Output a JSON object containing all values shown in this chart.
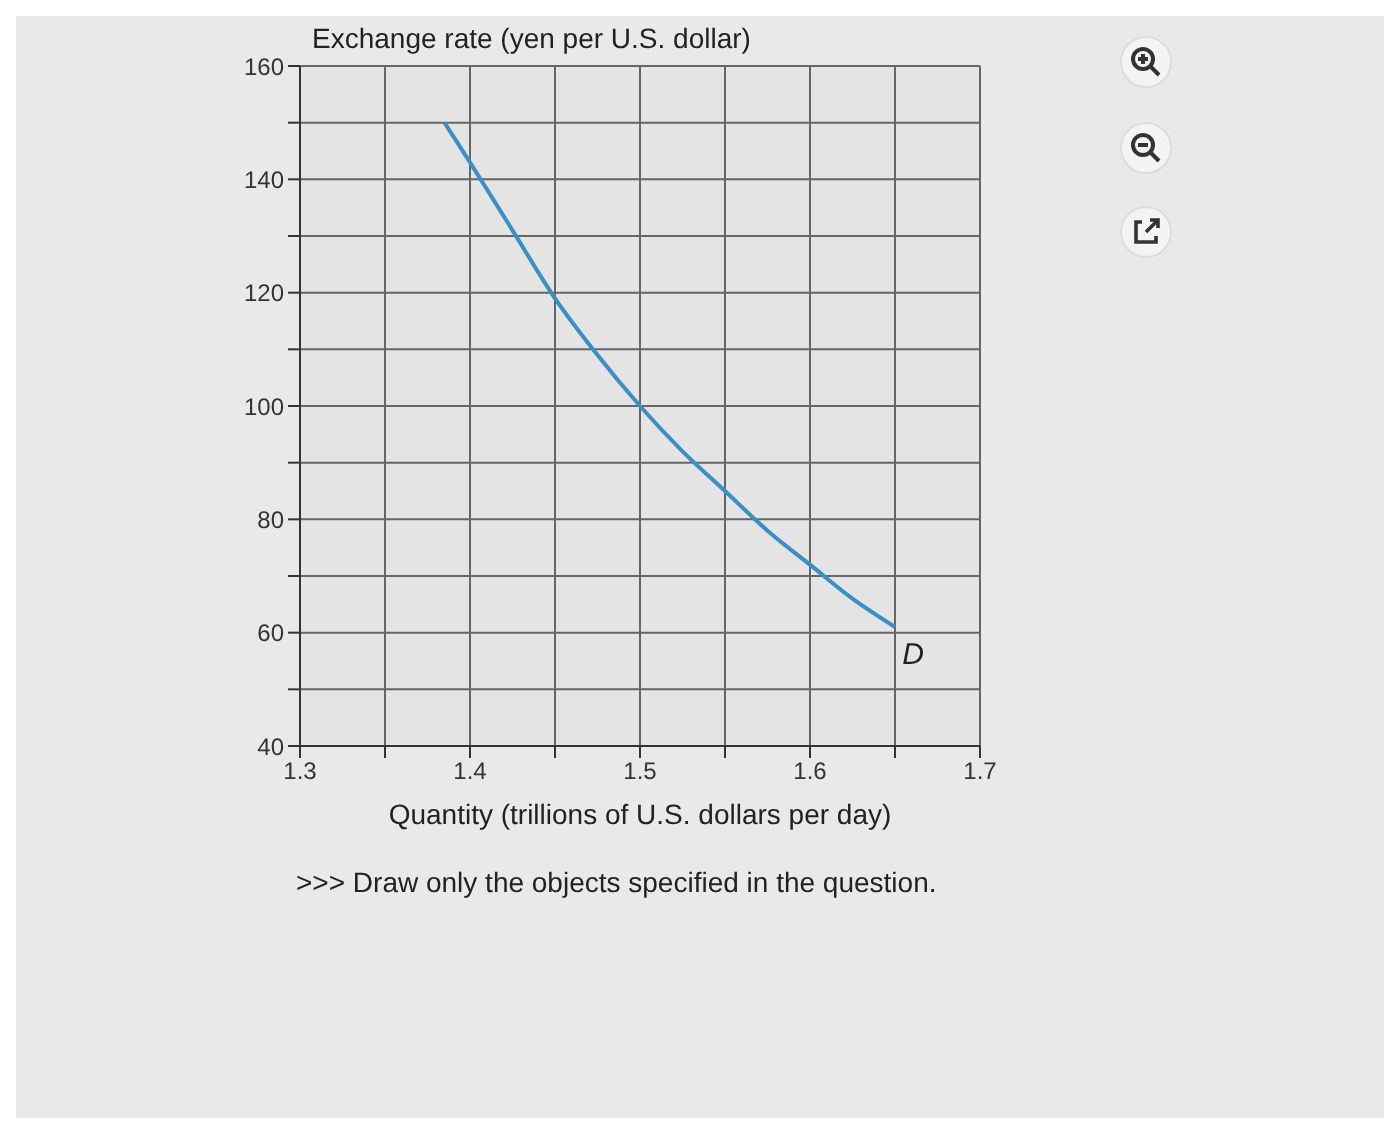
{
  "chart_data": {
    "type": "line",
    "title": "Exchange rate (yen per U.S. dollar)",
    "xlabel": "Quantity (trillions of U.S. dollars per day)",
    "x": [
      1.385,
      1.4,
      1.425,
      1.45,
      1.475,
      1.5,
      1.525,
      1.55,
      1.575,
      1.6,
      1.625,
      1.65
    ],
    "series": [
      {
        "color": "#3a8fc4",
        "values": [
          150,
          143,
          131,
          119,
          109,
          100,
          92,
          85,
          78,
          72,
          66,
          61
        ]
      }
    ],
    "xlim": [
      1.3,
      1.7
    ],
    "ylim": [
      40,
      160
    ],
    "xticks": [
      1.3,
      {
        "value": 1.35,
        "label": null
      },
      1.4,
      {
        "value": 1.45,
        "label": null
      },
      1.5,
      {
        "value": 1.55,
        "label": null
      },
      1.6,
      {
        "value": 1.65,
        "label": null
      },
      1.7
    ],
    "yticks": [
      40,
      {
        "value": 50,
        "label": null
      },
      60,
      {
        "value": 70,
        "label": null
      },
      80,
      {
        "value": 90,
        "label": null
      },
      100,
      {
        "value": 110,
        "label": null
      },
      120,
      {
        "value": 130,
        "label": null
      },
      140,
      {
        "value": 150,
        "label": null
      },
      160
    ],
    "grid": true,
    "marker": "none",
    "line_style": "solid",
    "annotations": [
      {
        "text": "D",
        "x": 1.65,
        "y": 61
      },
      ">>> Draw only the objects specified in the question."
    ]
  }
}
